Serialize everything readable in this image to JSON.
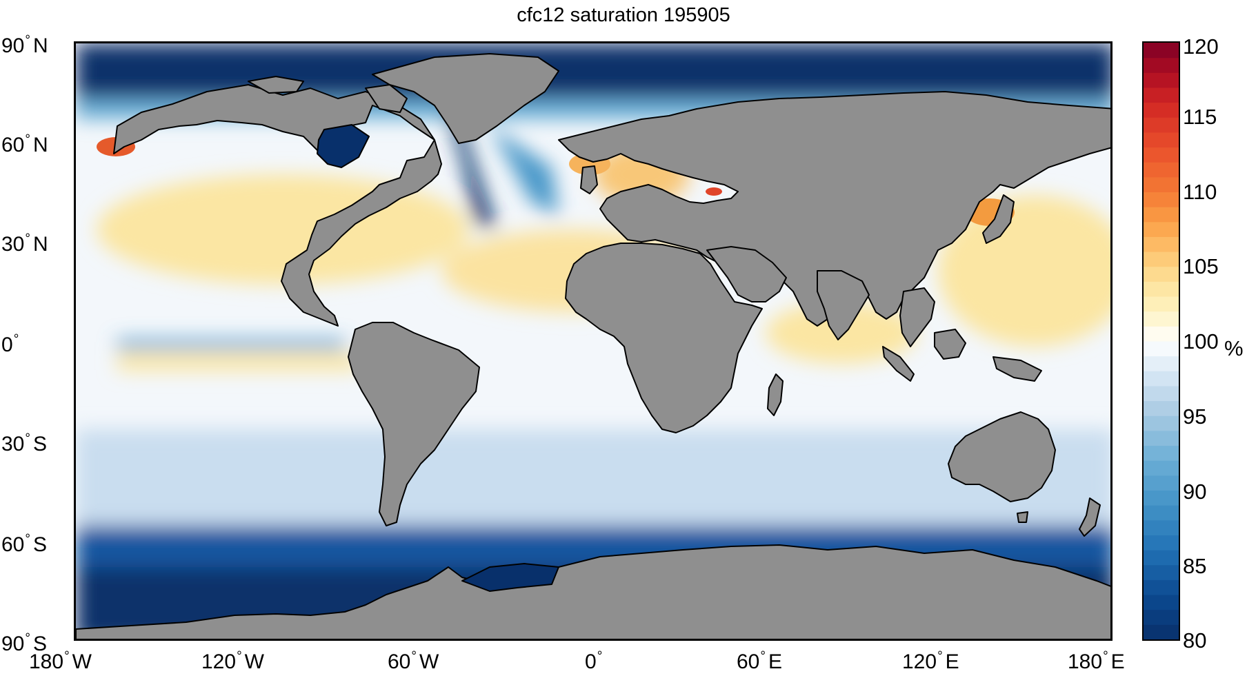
{
  "title": "cfc12 saturation 195905",
  "y_ticks": [
    {
      "deg": "90",
      "hemi": "N"
    },
    {
      "deg": "60",
      "hemi": "N"
    },
    {
      "deg": "30",
      "hemi": "N"
    },
    {
      "deg": "0",
      "hemi": ""
    },
    {
      "deg": "30",
      "hemi": "S"
    },
    {
      "deg": "60",
      "hemi": "S"
    },
    {
      "deg": "90",
      "hemi": "S"
    }
  ],
  "x_ticks": [
    {
      "deg": "180",
      "hemi": "W"
    },
    {
      "deg": "120",
      "hemi": "W"
    },
    {
      "deg": "60",
      "hemi": "W"
    },
    {
      "deg": "0",
      "hemi": ""
    },
    {
      "deg": "60",
      "hemi": "E"
    },
    {
      "deg": "120",
      "hemi": "E"
    },
    {
      "deg": "180",
      "hemi": "E"
    }
  ],
  "colorbar": {
    "min": 80,
    "max": 120,
    "ticks": [
      "120",
      "115",
      "110",
      "105",
      "100",
      "95",
      "90",
      "85",
      "80"
    ],
    "unit": "%"
  },
  "colors": {
    "land": "#8f8f8f",
    "deep_blue": "#08306b",
    "mid_blue": "#2171b5",
    "light_blue": "#c6dbef",
    "neutral": "#ffffff",
    "light_orange": "#fde79a",
    "orange": "#f39b3f",
    "red": "#c81b1f"
  }
}
